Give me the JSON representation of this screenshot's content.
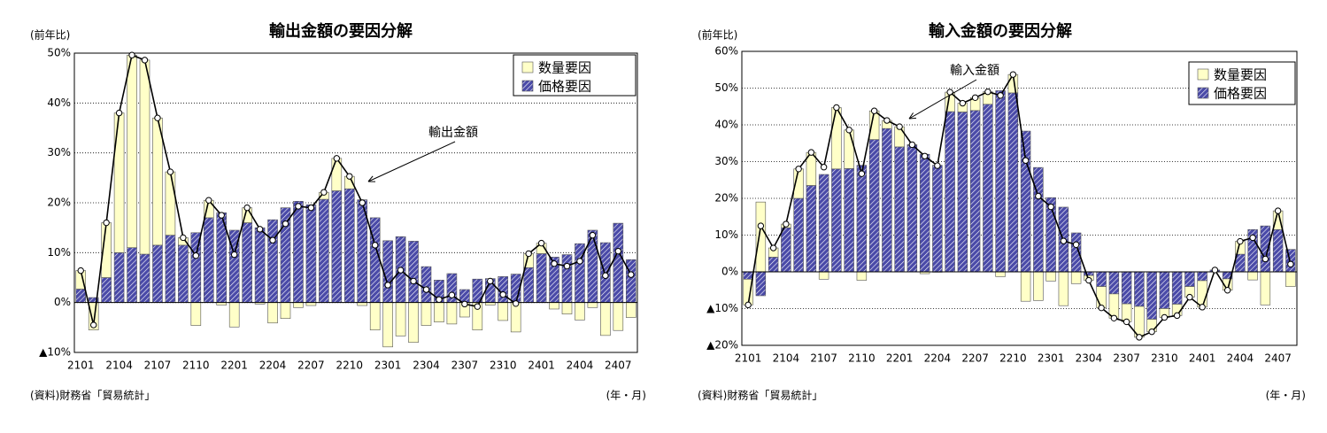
{
  "chart_data": [
    {
      "type": "bar",
      "stacked": true,
      "title": "輸出金額の要因分解",
      "y_label": "(前年比)",
      "x_label": "(年・月)",
      "source": "(資料)財務省「貿易統計」",
      "categories": [
        "2101",
        null,
        null,
        "2104",
        null,
        null,
        "2107",
        null,
        null,
        "2110",
        null,
        null,
        "2201",
        null,
        null,
        "2204",
        null,
        null,
        "2207",
        null,
        null,
        "2210",
        null,
        null,
        "2301",
        null,
        null,
        "2304",
        null,
        null,
        "2307",
        null,
        null,
        "2310",
        null,
        null,
        "2401",
        null,
        null,
        "2404",
        null,
        null,
        "2407",
        null
      ],
      "ylim": [
        -10,
        50
      ],
      "yticks": [
        {
          "value": 50,
          "label": "50%"
        },
        {
          "value": 40,
          "label": "40%"
        },
        {
          "value": 30,
          "label": "30%"
        },
        {
          "value": 20,
          "label": "20%"
        },
        {
          "value": 10,
          "label": "10%"
        },
        {
          "value": 0,
          "label": "0%"
        },
        {
          "value": -10,
          "label": "▲10%"
        }
      ],
      "grid": true,
      "legend": "upper right",
      "series": [
        {
          "name": "数量要因",
          "type": "bar",
          "color": "#ffffc8",
          "values": [
            3.7,
            -5.5,
            11,
            28,
            38.6,
            38.9,
            25.5,
            12.7,
            1.5,
            -4.6,
            3.5,
            -0.5,
            -4.9,
            3,
            -0.3,
            -4.1,
            -3.2,
            -1,
            -0.6,
            1.4,
            6.5,
            2.5,
            -0.6,
            -5.5,
            -8.9,
            -6.7,
            -8,
            -4.6,
            -3.9,
            -4.3,
            -2.9,
            -5.5,
            -0.5,
            -3.6,
            -5.9,
            2.8,
            2.1,
            -1.3,
            -2.3,
            -3.5,
            -1,
            -6.6,
            -5.6,
            -3
          ]
        },
        {
          "name": "価格要因",
          "type": "bar",
          "color": "#4a4aa8",
          "hatch": true,
          "values": [
            2.7,
            1,
            5,
            10,
            11,
            9.7,
            11.5,
            13.5,
            11.5,
            14,
            17,
            18,
            14.5,
            16,
            15,
            16.6,
            19,
            20.3,
            19.6,
            20.7,
            22.4,
            22.8,
            20.6,
            17,
            12.4,
            13.2,
            12.3,
            7.2,
            4.5,
            5.8,
            2.6,
            4.7,
            4.8,
            5.2,
            5.7,
            7,
            9.8,
            9.1,
            9.6,
            11.8,
            14.5,
            12,
            15.9,
            8.6
          ]
        },
        {
          "name": "輸出金額",
          "type": "line",
          "color": "#000000",
          "values": [
            6.4,
            -4.5,
            16,
            38,
            49.6,
            48.6,
            37,
            26.2,
            13,
            9.4,
            20.5,
            17.5,
            9.6,
            19,
            14.7,
            12.5,
            15.8,
            19.3,
            19,
            22.1,
            28.9,
            25.3,
            20,
            11.5,
            3.5,
            6.5,
            4.3,
            2.6,
            0.6,
            1.5,
            -0.3,
            -0.8,
            4.3,
            1.6,
            -0.2,
            9.8,
            11.9,
            7.8,
            7.3,
            8.3,
            13.5,
            5.4,
            10.3,
            5.6
          ]
        }
      ]
    },
    {
      "type": "bar",
      "stacked": true,
      "title": "輸入金額の要因分解",
      "y_label": "(前年比)",
      "x_label": "(年・月)",
      "source": "(資料)財務省「貿易統計」",
      "categories": [
        "2101",
        null,
        null,
        "2104",
        null,
        null,
        "2107",
        null,
        null,
        "2110",
        null,
        null,
        "2201",
        null,
        null,
        "2204",
        null,
        null,
        "2207",
        null,
        null,
        "2210",
        null,
        null,
        "2301",
        null,
        null,
        "2304",
        null,
        null,
        "2307",
        null,
        null,
        "2310",
        null,
        null,
        "2401",
        null,
        null,
        "2404",
        null,
        null,
        "2407",
        null
      ],
      "ylim": [
        -20,
        60
      ],
      "yticks": [
        {
          "value": 60,
          "label": "60%"
        },
        {
          "value": 50,
          "label": "50%"
        },
        {
          "value": 40,
          "label": "40%"
        },
        {
          "value": 30,
          "label": "30%"
        },
        {
          "value": 20,
          "label": "20%"
        },
        {
          "value": 10,
          "label": "10%"
        },
        {
          "value": 0,
          "label": "0%"
        },
        {
          "value": -10,
          "label": "▲10%"
        },
        {
          "value": -20,
          "label": "▲20%"
        }
      ],
      "grid": true,
      "legend": "upper right",
      "series": [
        {
          "name": "数量要因",
          "type": "bar",
          "color": "#ffffc8",
          "values": [
            -7,
            19,
            2.5,
            1,
            8,
            9,
            -2,
            16.7,
            10.5,
            -2.3,
            7.8,
            2.2,
            5.5,
            0.1,
            -0.5,
            -0.1,
            5.3,
            2.4,
            3.5,
            3.4,
            -1.3,
            5,
            -8,
            -7.8,
            -2.5,
            -9.2,
            -3.2,
            -1.3,
            -5.8,
            -6.6,
            -4.9,
            -8.4,
            -3.4,
            -2.4,
            -3.1,
            -2.9,
            -7.2,
            0,
            -3.1,
            3.5,
            -2.2,
            -9,
            5.1,
            -4
          ]
        },
        {
          "name": "価格要因",
          "type": "bar",
          "color": "#4a4aa8",
          "hatch": true,
          "values": [
            -2,
            -6.5,
            4,
            12,
            20,
            23.5,
            26.5,
            28,
            28.1,
            29,
            36,
            39,
            34,
            34.5,
            32,
            29,
            43.6,
            43.5,
            43.9,
            45.6,
            49.3,
            48.7,
            38.3,
            28.4,
            20.2,
            17.6,
            10.6,
            -1,
            -4,
            -6,
            -8.7,
            -9.4,
            -12.9,
            -10,
            -8.8,
            -4,
            -2.4,
            0.5,
            -1.9,
            4.8,
            11.5,
            12.5,
            11.5,
            6.1
          ]
        },
        {
          "name": "輸入金額",
          "type": "line",
          "color": "#000000",
          "values": [
            -9,
            12.5,
            6.5,
            13,
            28,
            32.5,
            28.5,
            44.7,
            38.6,
            26.7,
            43.8,
            41.2,
            39.5,
            34.6,
            31.5,
            28.9,
            48.9,
            45.9,
            47.4,
            49,
            48,
            53.7,
            30.3,
            20.6,
            17.7,
            8.4,
            7.4,
            -2.3,
            -9.8,
            -12.6,
            -13.6,
            -17.8,
            -16.3,
            -12.4,
            -11.9,
            -6.9,
            -9.6,
            0.5,
            -5,
            8.3,
            9.3,
            3.5,
            16.6,
            2.1
          ]
        }
      ]
    }
  ]
}
